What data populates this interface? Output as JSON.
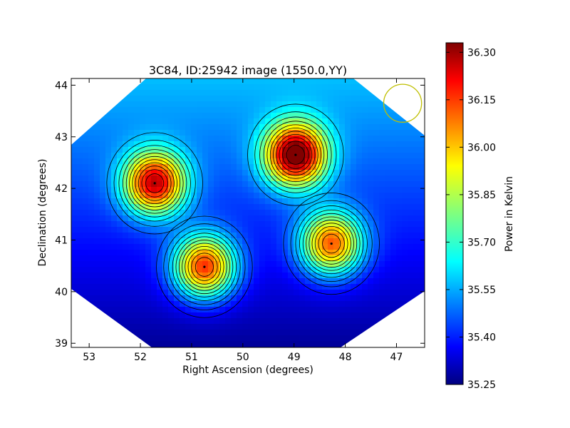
{
  "chart_data": {
    "type": "heatmap",
    "title": "3C84, ID:25942 image (1550.0,YY)",
    "xlabel": "Right Ascension (degrees)",
    "ylabel": "Declination (degrees)",
    "colorbar_label": "Power in Kelvin",
    "xlim": [
      53.35,
      46.45
    ],
    "ylim": [
      38.92,
      44.13
    ],
    "x_axis_inverted": true,
    "x_ticks": [
      53,
      52,
      51,
      50,
      49,
      48,
      47
    ],
    "x_tick_labels": [
      "53",
      "52",
      "51",
      "50",
      "49",
      "48",
      "47"
    ],
    "y_ticks": [
      39,
      40,
      41,
      42,
      43,
      44
    ],
    "y_tick_labels": [
      "39",
      "40",
      "41",
      "42",
      "43",
      "44"
    ],
    "colorbar_range": [
      35.25,
      36.33
    ],
    "colorbar_ticks": [
      35.25,
      35.4,
      35.55,
      35.7,
      35.85,
      36.0,
      36.15,
      36.3
    ],
    "colorbar_tick_labels": [
      "35.25",
      "35.40",
      "35.55",
      "35.70",
      "35.85",
      "36.00",
      "36.15",
      "36.30"
    ],
    "colormap": "jet",
    "background_level": 35.4,
    "peaks": [
      {
        "ra": 51.72,
        "dec": 42.1,
        "value": 36.22
      },
      {
        "ra": 48.97,
        "dec": 42.65,
        "value": 36.33
      },
      {
        "ra": 50.75,
        "dec": 40.48,
        "value": 36.19
      },
      {
        "ra": 48.27,
        "dec": 40.93,
        "value": 36.12
      }
    ],
    "beam": {
      "ra": 46.88,
      "dec": 43.65,
      "radius_deg": 0.37,
      "color": "#bfbf00"
    },
    "contours": "on",
    "grid": "off"
  }
}
